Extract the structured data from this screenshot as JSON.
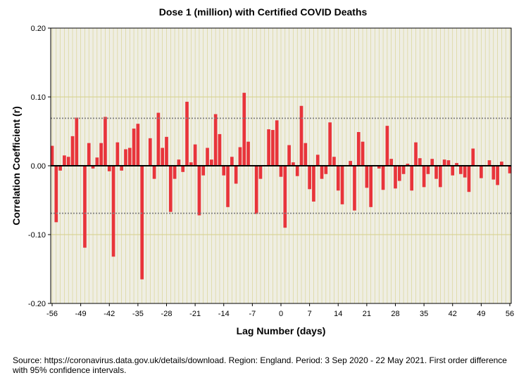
{
  "chart_data": {
    "type": "bar",
    "title": "Dose 1 (million) with Certified COVID Deaths",
    "xlabel": "Lag Number (days)",
    "ylabel": "Correlation Coefficient (r)",
    "xlim": [
      -56,
      56
    ],
    "ylim": [
      -0.2,
      0.2
    ],
    "x_ticks": [
      -56,
      -49,
      -42,
      -35,
      -28,
      -21,
      -14,
      -7,
      0,
      7,
      14,
      21,
      28,
      35,
      42,
      49,
      56
    ],
    "y_ticks": [
      0.2,
      0.1,
      0.0,
      -0.1,
      -0.2
    ],
    "y_tick_labels": [
      "0.20",
      "0.10",
      "0.00",
      "-0.10",
      "-0.20"
    ],
    "ci_upper": {
      "start": 0.069,
      "end": 0.069
    },
    "ci_lower": {
      "start": -0.069,
      "end": -0.069
    },
    "grid": true,
    "bar_color": "#e8343a",
    "plot_background": "#efeee3",
    "gridline_color": "#d6d08a",
    "ci_color": "#808080",
    "series": [
      {
        "name": "Correlation coefficient",
        "lags": [
          -56,
          -55,
          -54,
          -53,
          -52,
          -51,
          -50,
          -49,
          -48,
          -47,
          -46,
          -45,
          -44,
          -43,
          -42,
          -41,
          -40,
          -39,
          -38,
          -37,
          -36,
          -35,
          -34,
          -33,
          -32,
          -31,
          -30,
          -29,
          -28,
          -27,
          -26,
          -25,
          -24,
          -23,
          -22,
          -21,
          -20,
          -19,
          -18,
          -17,
          -16,
          -15,
          -14,
          -13,
          -12,
          -11,
          -10,
          -9,
          -8,
          -7,
          -6,
          -5,
          -4,
          -3,
          -2,
          -1,
          0,
          1,
          2,
          3,
          4,
          5,
          6,
          7,
          8,
          9,
          10,
          11,
          12,
          13,
          14,
          15,
          16,
          17,
          18,
          19,
          20,
          21,
          22,
          23,
          24,
          25,
          26,
          27,
          28,
          29,
          30,
          31,
          32,
          33,
          34,
          35,
          36,
          37,
          38,
          39,
          40,
          41,
          42,
          43,
          44,
          45,
          46,
          47,
          48,
          49,
          50,
          51,
          52,
          53,
          54,
          55,
          56
        ],
        "values": [
          0.029,
          -0.082,
          -0.007,
          0.015,
          0.013,
          0.043,
          0.07,
          0,
          -0.119,
          0.033,
          -0.004,
          0.012,
          0.033,
          0.071,
          -0.008,
          -0.132,
          0.034,
          -0.007,
          0.024,
          0.026,
          0.054,
          0.061,
          -0.165,
          0,
          0.04,
          -0.019,
          0.077,
          0.026,
          0.042,
          -0.067,
          -0.019,
          0.009,
          -0.009,
          0.093,
          0.005,
          0.031,
          -0.072,
          -0.014,
          0.026,
          0.009,
          0.075,
          0.046,
          -0.014,
          -0.06,
          0.013,
          -0.026,
          0.027,
          0.106,
          0.035,
          0,
          -0.07,
          -0.019,
          0,
          0.053,
          0.052,
          0.066,
          -0.016,
          -0.09,
          0.03,
          0.005,
          -0.015,
          0.087,
          0.033,
          -0.034,
          -0.052,
          0.016,
          -0.019,
          -0.012,
          0.063,
          0.013,
          -0.036,
          -0.056,
          0,
          0.007,
          -0.065,
          0.049,
          0.035,
          -0.032,
          -0.06,
          0,
          -0.004,
          -0.035,
          0.058,
          0.01,
          -0.033,
          -0.022,
          -0.012,
          0.003,
          -0.036,
          0.034,
          0.011,
          -0.031,
          -0.012,
          0.01,
          -0.019,
          -0.031,
          0.009,
          0.008,
          -0.014,
          0.004,
          -0.012,
          -0.017,
          -0.038,
          0.025,
          0,
          -0.018,
          0,
          0.008,
          -0.02,
          -0.028,
          0.006,
          0,
          -0.011
        ]
      }
    ]
  },
  "source_text": "Source: https://coronavirus.data.gov.uk/details/download. Region: England. Period: 3 Sep 2020 - 22 May 2021. First order difference with 95% confidence intervals."
}
